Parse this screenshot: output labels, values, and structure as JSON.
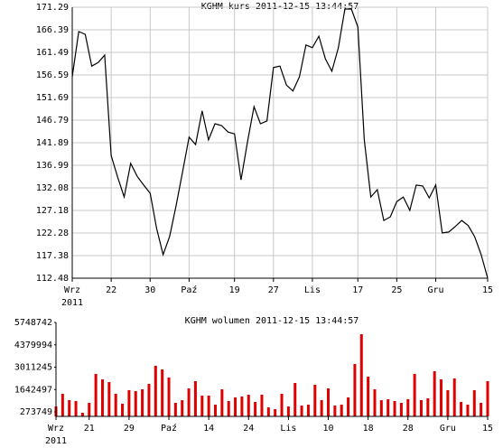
{
  "chart_data": [
    {
      "type": "line",
      "title": "KGHM kurs  2011-12-15 13:44:57",
      "color": "#000000",
      "grid": true,
      "x_year_label": "2011",
      "categories": [
        "Wrz",
        null,
        null,
        null,
        null,
        null,
        "22",
        null,
        null,
        null,
        null,
        null,
        "30",
        null,
        null,
        null,
        null,
        null,
        "Paź",
        null,
        null,
        null,
        null,
        null,
        null,
        "19",
        null,
        null,
        null,
        null,
        null,
        "27",
        null,
        null,
        null,
        null,
        null,
        "Lis",
        null,
        null,
        null,
        null,
        null,
        null,
        "17",
        null,
        null,
        null,
        null,
        null,
        "25",
        null,
        null,
        null,
        null,
        null,
        "Gru",
        null,
        null,
        null,
        null,
        null,
        null,
        null,
        "15"
      ],
      "values": [
        156.2,
        166.0,
        165.4,
        158.5,
        159.3,
        160.9,
        139.1,
        134.4,
        130.1,
        137.4,
        134.6,
        132.7,
        130.9,
        123.3,
        117.6,
        121.5,
        128.2,
        135.6,
        143.1,
        141.5,
        148.8,
        142.5,
        146.0,
        145.6,
        144.2,
        143.8,
        133.8,
        142.1,
        149.7,
        146.0,
        146.6,
        158.2,
        158.5,
        154.4,
        153.1,
        156.2,
        163.1,
        162.5,
        165.0,
        160.1,
        157.4,
        162.5,
        170.9,
        170.9,
        167.0,
        142.5,
        130.1,
        131.7,
        125.0,
        125.8,
        129.1,
        130.1,
        127.2,
        132.7,
        132.5,
        129.9,
        132.7,
        122.3,
        122.5,
        123.7,
        125.0,
        123.9,
        121.5,
        117.6,
        112.5
      ],
      "ylim": [
        112.48,
        171.29
      ],
      "yticks": [
        112.48,
        117.38,
        122.28,
        127.18,
        132.08,
        136.99,
        141.89,
        146.79,
        151.69,
        156.59,
        161.49,
        166.39,
        171.29
      ]
    },
    {
      "type": "bar",
      "title": "KGHM wolumen  2011-12-15 13:44:57",
      "color": "#e00000",
      "grid": false,
      "x_year_label": "2011",
      "categories": [
        "Wrz",
        null,
        null,
        null,
        null,
        "21",
        null,
        null,
        null,
        null,
        null,
        "29",
        null,
        null,
        null,
        null,
        null,
        "Paź",
        null,
        null,
        null,
        null,
        null,
        "14",
        null,
        null,
        null,
        null,
        null,
        "24",
        null,
        null,
        null,
        null,
        null,
        "Lis",
        null,
        null,
        null,
        null,
        null,
        "10",
        null,
        null,
        null,
        null,
        null,
        "18",
        null,
        null,
        null,
        null,
        null,
        "28",
        null,
        null,
        null,
        null,
        null,
        "Gru",
        null,
        null,
        null,
        null,
        null,
        "15"
      ],
      "values": [
        608000,
        1382000,
        995000,
        940000,
        221000,
        829000,
        2598000,
        2266000,
        2100000,
        1382000,
        774000,
        1603000,
        1548000,
        1658000,
        1990000,
        3095000,
        2874000,
        2377000,
        829000,
        995000,
        1714000,
        2156000,
        1271000,
        1271000,
        719000,
        1658000,
        940000,
        1161000,
        1216000,
        1327000,
        884000,
        1327000,
        553000,
        442000,
        1382000,
        608000,
        2045000,
        663000,
        719000,
        1935000,
        995000,
        1714000,
        663000,
        719000,
        1161000,
        3206000,
        5030000,
        2432000,
        1658000,
        995000,
        1050000,
        940000,
        829000,
        1050000,
        2598000,
        995000,
        1106000,
        2764000,
        2266000,
        1603000,
        2322000,
        884000,
        719000,
        1603000,
        829000,
        2156000
      ],
      "ylim": [
        0,
        5748742
      ],
      "yticks": [
        273749,
        1642497,
        3011245,
        4379994,
        5748742
      ]
    }
  ]
}
